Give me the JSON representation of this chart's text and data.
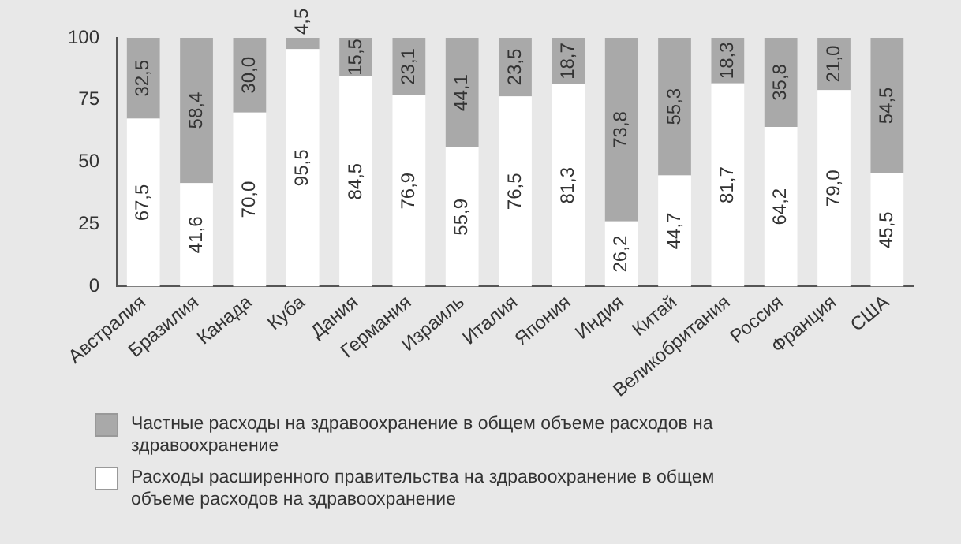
{
  "chart_data": {
    "type": "bar",
    "stacked": true,
    "categories": [
      "Австралия",
      "Бразилия",
      "Канада",
      "Куба",
      "Дания",
      "Германия",
      "Израиль",
      "Италия",
      "Япония",
      "Индия",
      "Китай",
      "Великобритания",
      "Россия",
      "Франция",
      "США"
    ],
    "series": [
      {
        "name": "Расходы расширенного правительства на здравоохранение в общем объеме расходов на здравоохранение",
        "color": "#ffffff",
        "values": [
          67.5,
          41.6,
          70.0,
          95.5,
          84.5,
          76.9,
          55.9,
          76.5,
          81.3,
          26.2,
          44.7,
          81.7,
          64.2,
          79.0,
          45.5
        ],
        "value_labels": [
          "67,5",
          "41,6",
          "70,0",
          "95,5",
          "84,5",
          "76,9",
          "55,9",
          "76,5",
          "81,3",
          "26,2",
          "44,7",
          "81,7",
          "64,2",
          "79,0",
          "45,5"
        ]
      },
      {
        "name": "Частные расходы на здравоохранение в общем объеме расходов на здравоохранение",
        "color": "#a9a9a9",
        "values": [
          32.5,
          58.4,
          30.0,
          4.5,
          15.5,
          23.1,
          44.1,
          23.5,
          18.7,
          73.8,
          55.3,
          18.3,
          35.8,
          21.0,
          54.5
        ],
        "value_labels": [
          "32,5",
          "58,4",
          "30,0",
          "4,5",
          "15,5",
          "23,1",
          "44,1",
          "23,5",
          "18,7",
          "73,8",
          "55,3",
          "18,3",
          "35,8",
          "21,0",
          "54,5"
        ]
      }
    ],
    "ylim": [
      0,
      100
    ],
    "yticks": [
      0,
      25,
      50,
      75,
      100
    ],
    "grid": false,
    "legend": "bottom"
  }
}
